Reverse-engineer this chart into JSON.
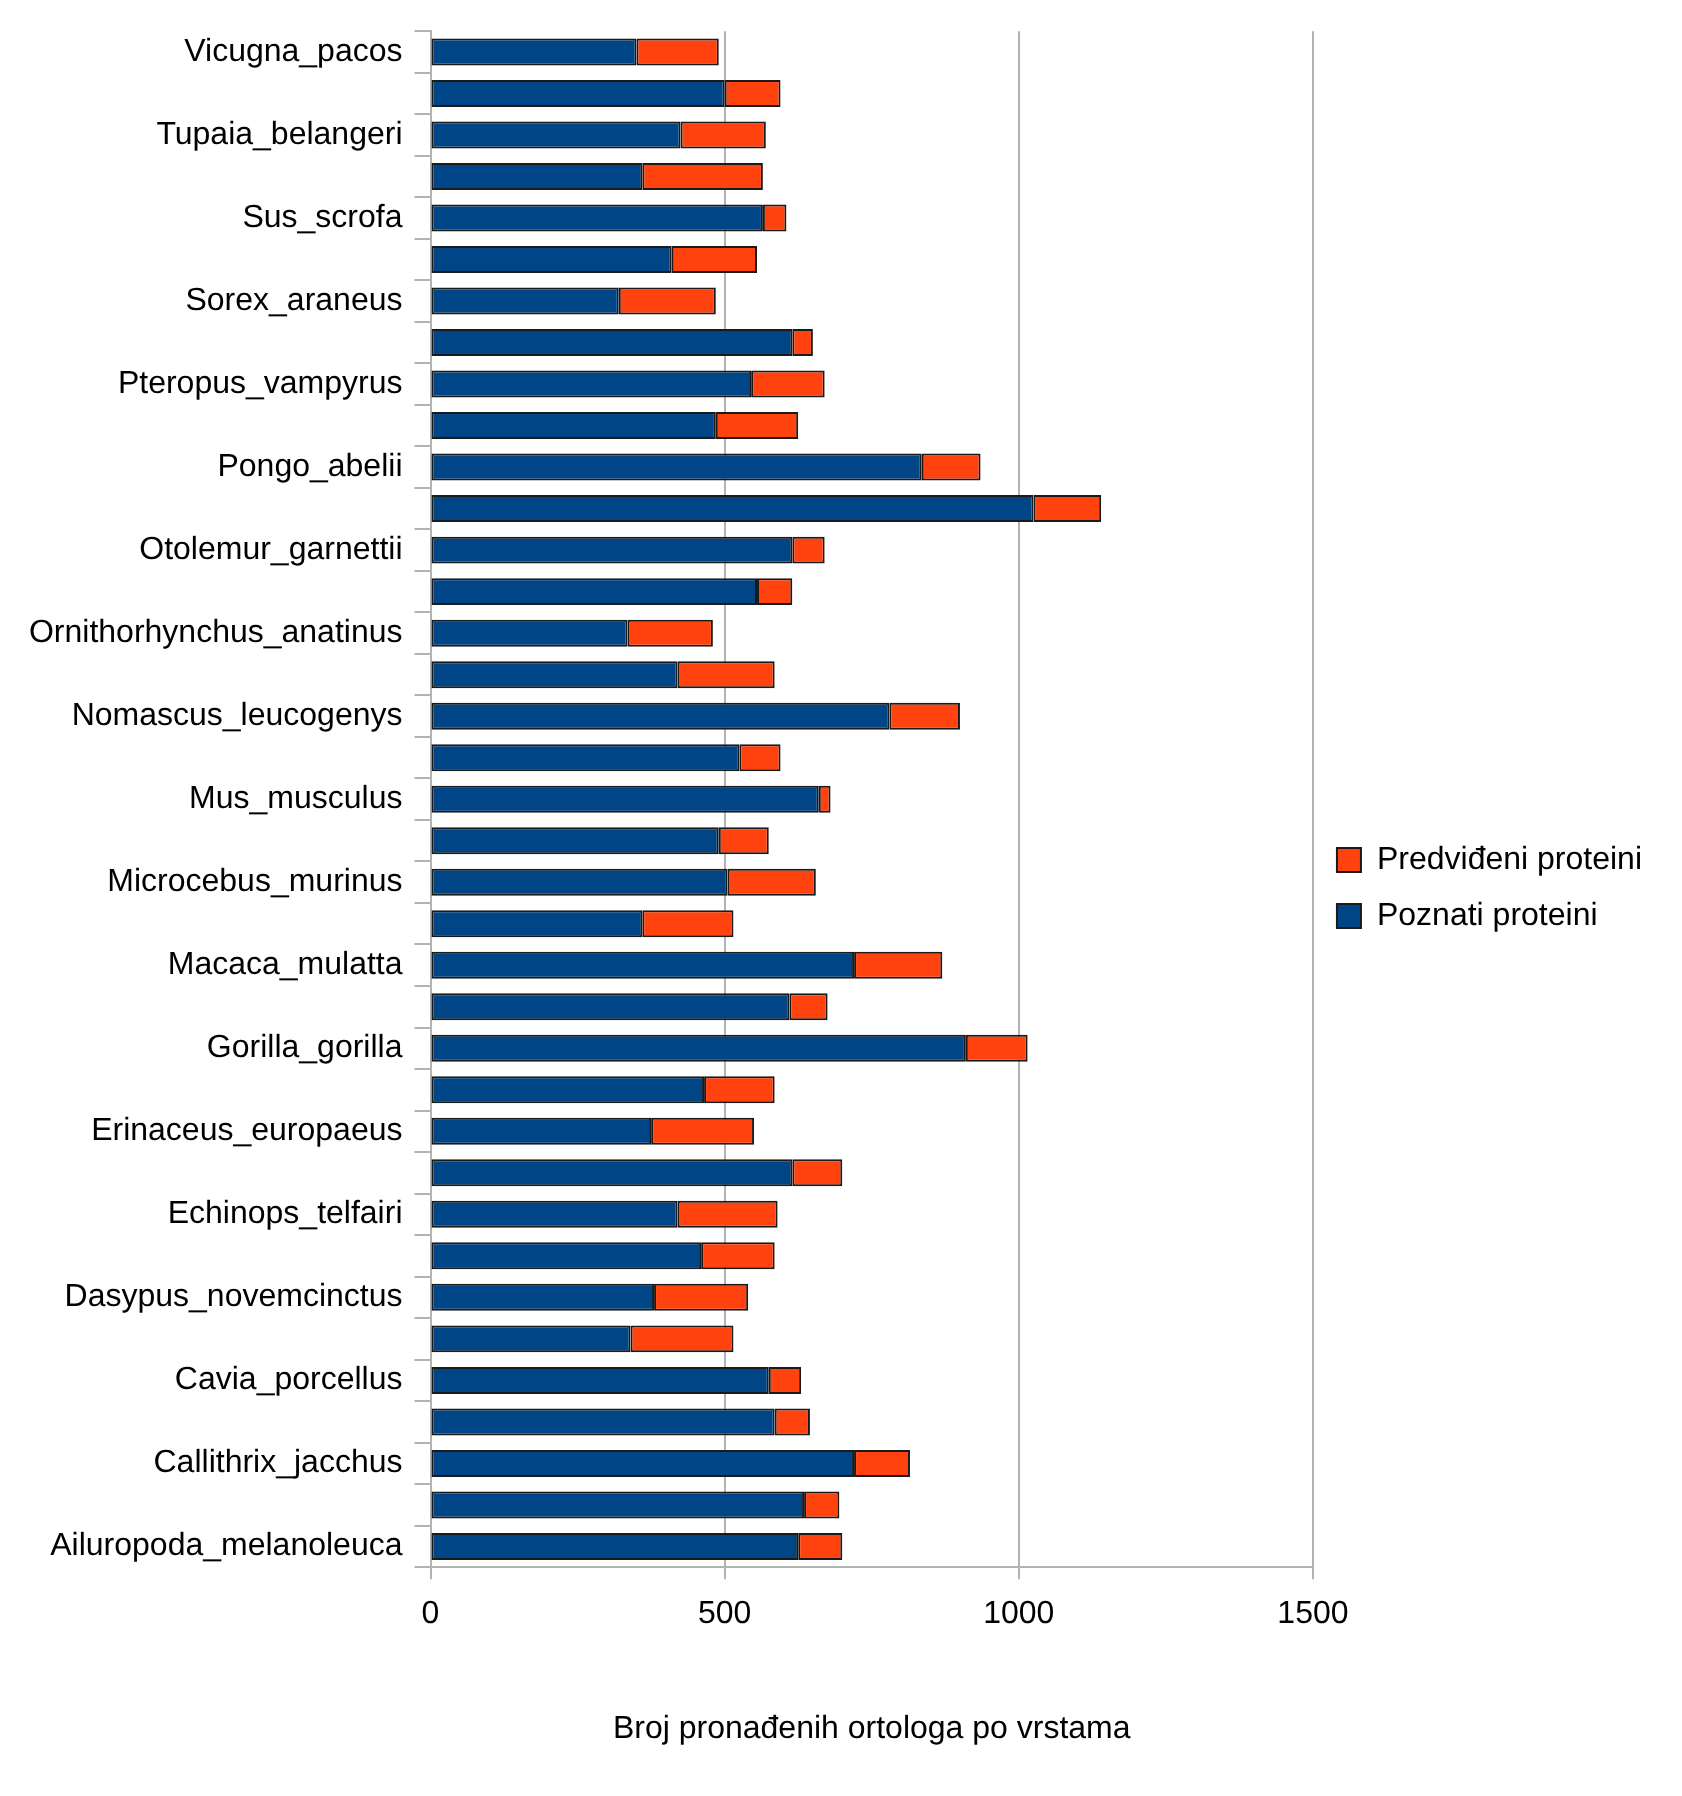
{
  "chart_data": {
    "type": "bar",
    "orientation": "horizontal",
    "stacked": true,
    "xlabel": "Broj pronađenih ortologa po vrstama",
    "categories": [
      "Vicugna_pacos",
      null,
      "Tupaia_belangeri",
      null,
      "Sus_scrofa",
      null,
      "Sorex_araneus",
      null,
      "Pteropus_vampyrus",
      null,
      "Pongo_abelii",
      null,
      "Otolemur_garnettii",
      null,
      "Ornithorhynchus_anatinus",
      null,
      "Nomascus_leucogenys",
      null,
      "Mus_musculus",
      null,
      "Microcebus_murinus",
      null,
      "Macaca_mulatta",
      null,
      "Gorilla_gorilla",
      null,
      "Erinaceus_europaeus",
      null,
      "Echinops_telfairi",
      null,
      "Dasypus_novemcinctus",
      null,
      "Cavia_porcellus",
      null,
      "Callithrix_jacchus",
      null,
      "Ailuropoda_melanoleuca"
    ],
    "series": [
      {
        "name": "Poznati proteini",
        "color": "#004586",
        "values": [
          350,
          500,
          425,
          360,
          565,
          410,
          320,
          615,
          545,
          485,
          835,
          1025,
          615,
          555,
          335,
          420,
          780,
          525,
          660,
          490,
          505,
          360,
          720,
          610,
          910,
          465,
          375,
          615,
          420,
          460,
          380,
          340,
          575,
          585,
          720,
          635,
          625
        ]
      },
      {
        "name": "Predviđeni proteini",
        "color": "#ff420e",
        "values": [
          140,
          95,
          145,
          205,
          40,
          145,
          165,
          35,
          125,
          140,
          100,
          115,
          55,
          60,
          145,
          165,
          120,
          70,
          20,
          85,
          150,
          155,
          150,
          65,
          105,
          120,
          175,
          85,
          170,
          125,
          160,
          175,
          55,
          60,
          95,
          60,
          75
        ]
      }
    ],
    "xlim": [
      0,
      1500
    ],
    "xticks": [
      0,
      500,
      1000,
      1500
    ],
    "grid": "x",
    "legend": "right"
  }
}
